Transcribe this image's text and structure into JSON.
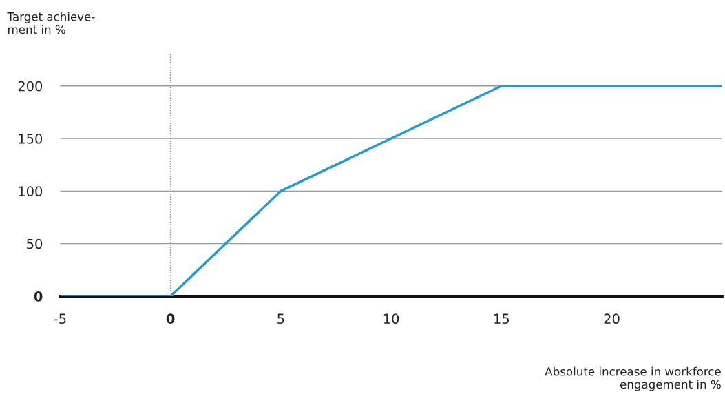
{
  "chart_data": {
    "type": "line",
    "ylabel": "Target achieve-\nment in %",
    "xlabel": "Absolute increase in workforce\nengagement in %",
    "x": [
      -5,
      0,
      5,
      15,
      25
    ],
    "series": [
      {
        "color": "#1f9bd7",
        "values": [
          0,
          0,
          100,
          200,
          200
        ]
      }
    ],
    "xlim": [
      -5,
      25
    ],
    "xticks": [
      -5,
      0,
      5,
      10,
      15,
      20
    ],
    "ylim": [
      0,
      230
    ],
    "yticks": [
      0,
      50,
      100,
      150,
      200
    ],
    "grid": "y",
    "marker": "none",
    "line_style": "solid",
    "legend": false,
    "ref_lines": [
      {
        "axis": "x",
        "value": 0,
        "color": "#888888",
        "line_style": "dotted"
      }
    ]
  }
}
